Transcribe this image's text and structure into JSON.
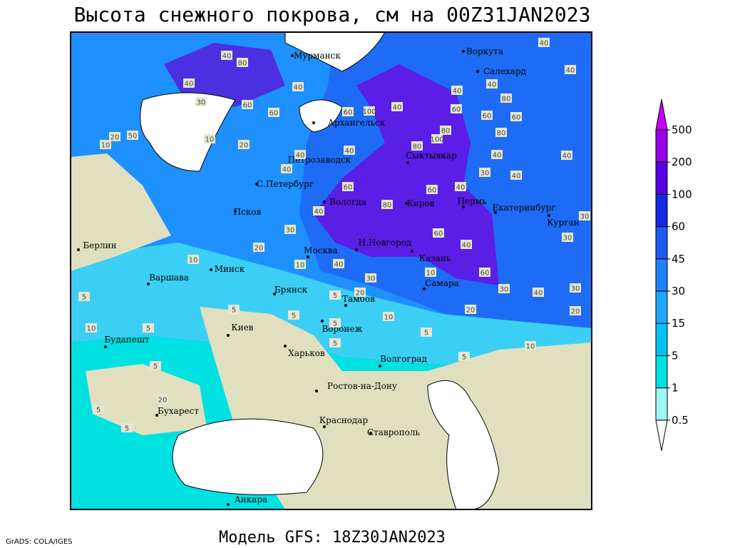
{
  "title": "Высота снежного покрова, см на 00Z31JAN2023",
  "subtitle": "Модель GFS: 18Z30JAN2023",
  "credit": "GrADS: COLA/IGES",
  "cities": [
    "Мурманск",
    "Воркута",
    "Салехард",
    "Архангельск",
    "Сыктывкар",
    "Петрозаводск",
    "С.Петербург",
    "Вологда",
    "Киров",
    "Пермь",
    "Екатеринбург",
    "Курган",
    "Псков",
    "Берлин",
    "Москва",
    "Н.Новгород",
    "Казань",
    "Минск",
    "Варшава",
    "Самара",
    "Брянск",
    "Тамбов",
    "Киев",
    "Воронеж",
    "Будапешт",
    "Харьков",
    "Волгоград",
    "Ростов-на-Дону",
    "Бухарест",
    "Краснодар",
    "Ставрополь",
    "Анкара"
  ],
  "contour_labels": [
    40,
    80,
    40,
    30,
    60,
    60,
    40,
    60,
    100,
    40,
    80,
    100,
    80,
    60,
    40,
    40,
    80,
    60,
    60,
    80,
    40,
    40,
    40,
    40,
    40,
    30,
    60,
    40,
    80,
    60,
    40,
    40,
    40,
    20,
    10,
    20,
    50,
    10,
    40,
    30,
    20,
    10,
    10,
    40,
    60,
    40,
    60,
    30,
    40,
    30,
    20,
    30,
    30,
    20,
    30,
    20,
    5,
    10,
    5,
    5,
    10,
    10,
    5,
    5,
    5,
    5,
    10,
    5,
    20,
    5,
    5,
    5,
    5
  ],
  "colorbar": {
    "levels": [
      0.5,
      1,
      5,
      15,
      30,
      45,
      60,
      100,
      200,
      500
    ],
    "colors": [
      "#ffffff",
      "#a0f5f5",
      "#00e1e1",
      "#00c3f5",
      "#1ea5ff",
      "#1e82ff",
      "#1e5af5",
      "#1428e6",
      "#5a00e6",
      "#9600e6",
      "#c800f5"
    ]
  }
}
